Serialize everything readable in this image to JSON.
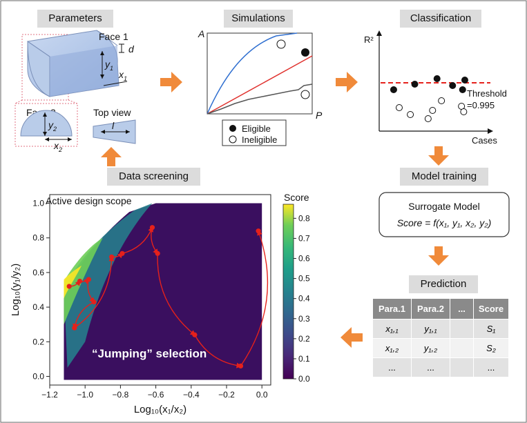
{
  "headers": {
    "parameters": "Parameters",
    "simulations": "Simulations",
    "classification": "Classification",
    "data_screening": "Data screening",
    "model_training": "Model training",
    "prediction": "Prediction"
  },
  "parameters_panel": {
    "face1": "Face 1",
    "face2": "Face 2",
    "top_view": "Top view",
    "d": "d",
    "y1": "y",
    "y1_sub": "1",
    "x1": "x",
    "x1_sub": "1",
    "y2": "y",
    "y2_sub": "2",
    "x2": "x",
    "x2_sub": "2",
    "l": "l"
  },
  "simulations_panel": {
    "y_axis": "A",
    "x_axis": "P",
    "legend_eligible": "Eligible",
    "legend_ineligible": "Ineligible"
  },
  "classification_panel": {
    "y_axis": "R²",
    "x_axis": "Cases",
    "threshold_label": "Threshold",
    "threshold_value": "=0.995",
    "filled_points": [
      [
        0.13,
        0.8
      ],
      [
        0.32,
        0.84
      ],
      [
        0.52,
        0.88
      ],
      [
        0.66,
        0.83
      ],
      [
        0.75,
        0.8
      ],
      [
        0.77,
        0.87
      ]
    ],
    "open_points": [
      [
        0.18,
        0.67
      ],
      [
        0.28,
        0.62
      ],
      [
        0.44,
        0.59
      ],
      [
        0.48,
        0.65
      ],
      [
        0.56,
        0.72
      ],
      [
        0.74,
        0.68
      ],
      [
        0.76,
        0.64
      ]
    ]
  },
  "model_panel": {
    "title": "Surrogate Model",
    "formula_lhs": "Score",
    "formula_rhs": " = f(x₁, y₁, x₂, y₂)"
  },
  "prediction_table": {
    "columns": [
      "Para.1",
      "Para.2",
      "...",
      "Score"
    ],
    "rows": [
      [
        "x₁,₁",
        "y₁,₁",
        "",
        "S₁"
      ],
      [
        "x₁,₂",
        "y₁,₂",
        "",
        "S₂"
      ],
      [
        "...",
        "...",
        "",
        "..."
      ]
    ]
  },
  "chart_data": {
    "type": "scatter",
    "title": "Active design scope",
    "xlabel": "Log₁₀(x₁/x₂)",
    "ylabel": "Log₁₀(y₁/y₂)",
    "xlim": [
      -1.2,
      0.05
    ],
    "ylim": [
      -0.05,
      1.05
    ],
    "x_ticks": [
      -1.2,
      -1.0,
      -0.8,
      -0.6,
      -0.4,
      -0.2,
      0.0
    ],
    "x_tick_labels": [
      "−1.2",
      "−1.0",
      "−0.8",
      "−0.6",
      "−0.4",
      "−0.2",
      "0.0"
    ],
    "y_ticks": [
      0.0,
      0.2,
      0.4,
      0.6,
      0.8,
      1.0
    ],
    "y_tick_labels": [
      "0.0",
      "0.2",
      "0.4",
      "0.6",
      "0.8",
      "1.0"
    ],
    "colorbar": {
      "label": "Score",
      "range": [
        0.0,
        0.87
      ],
      "ticks": [
        0.0,
        0.1,
        0.2,
        0.3,
        0.4,
        0.5,
        0.6,
        0.7,
        0.8
      ],
      "tick_labels": [
        "0.0",
        "0.1",
        "0.2",
        "0.3",
        "0.4",
        "0.5",
        "0.6",
        "0.7",
        "0.8"
      ]
    },
    "annotation": "“Jumping” selection",
    "selection_path": [
      {
        "x": -1.09,
        "y": 0.52
      },
      {
        "x": -1.03,
        "y": 0.55
      },
      {
        "x": -0.98,
        "y": 0.56
      },
      {
        "x": -0.95,
        "y": 0.43
      },
      {
        "x": -1.06,
        "y": 0.28
      },
      {
        "x": -0.85,
        "y": 0.69
      },
      {
        "x": -0.79,
        "y": 0.71
      },
      {
        "x": -0.62,
        "y": 0.86
      },
      {
        "x": -0.59,
        "y": 0.71
      },
      {
        "x": -0.38,
        "y": 0.24
      },
      {
        "x": -0.12,
        "y": 0.06
      },
      {
        "x": -0.02,
        "y": 0.84
      }
    ]
  }
}
